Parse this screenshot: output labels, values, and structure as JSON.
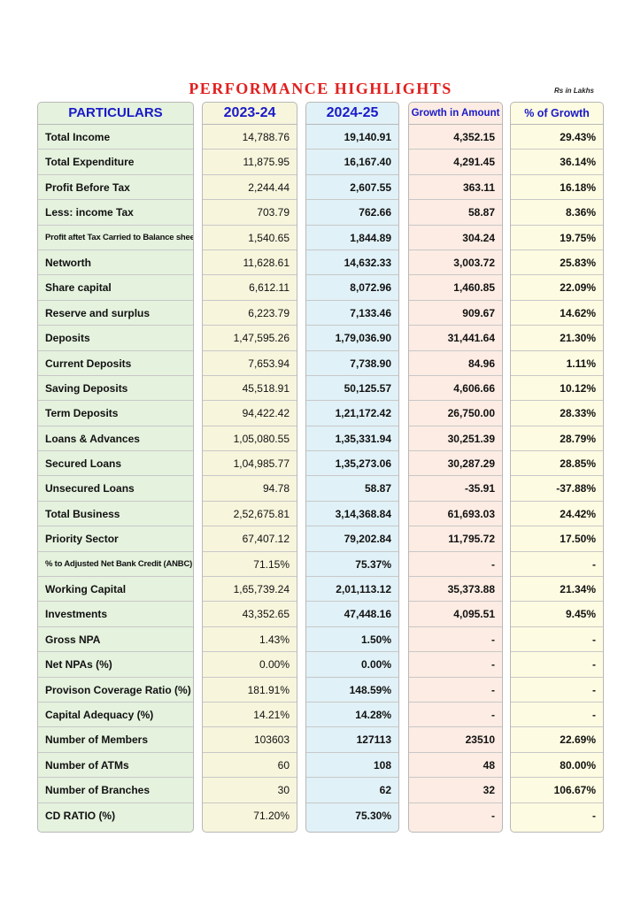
{
  "title": "PERFORMANCE  HIGHLIGHTS",
  "unit": "Rs in Lakhs",
  "headers": [
    "PARTICULARS",
    "2023-24",
    "2024-25",
    "Growth in Amount",
    "% of  Growth"
  ],
  "rows": [
    [
      "Total Income",
      "14,788.76",
      "19,140.91",
      "4,352.15",
      "29.43%"
    ],
    [
      "Total Expenditure",
      "11,875.95",
      "16,167.40",
      "4,291.45",
      "36.14%"
    ],
    [
      "Profit Before Tax",
      "2,244.44",
      "2,607.55",
      "363.11",
      "16.18%"
    ],
    [
      "Less: income Tax",
      "703.79",
      "762.66",
      "58.87",
      "8.36%"
    ],
    [
      "Profit aftet Tax Carried to Balance sheet",
      "1,540.65",
      "1,844.89",
      "304.24",
      "19.75%"
    ],
    [
      "Networth",
      "11,628.61",
      "14,632.33",
      "3,003.72",
      "25.83%"
    ],
    [
      "Share capital",
      "6,612.11",
      "8,072.96",
      "1,460.85",
      "22.09%"
    ],
    [
      "Reserve and surplus",
      "6,223.79",
      "7,133.46",
      "909.67",
      "14.62%"
    ],
    [
      "Deposits",
      "1,47,595.26",
      "1,79,036.90",
      "31,441.64",
      "21.30%"
    ],
    [
      "Current Deposits",
      "7,653.94",
      "7,738.90",
      "84.96",
      "1.11%"
    ],
    [
      "Saving Deposits",
      "45,518.91",
      "50,125.57",
      "4,606.66",
      "10.12%"
    ],
    [
      "Term Deposits",
      "94,422.42",
      "1,21,172.42",
      "26,750.00",
      "28.33%"
    ],
    [
      "Loans & Advances",
      "1,05,080.55",
      "1,35,331.94",
      "30,251.39",
      "28.79%"
    ],
    [
      "Secured Loans",
      "1,04,985.77",
      "1,35,273.06",
      "30,287.29",
      "28.85%"
    ],
    [
      "Unsecured Loans",
      "94.78",
      "58.87",
      "-35.91",
      "-37.88%"
    ],
    [
      "Total Business",
      "2,52,675.81",
      "3,14,368.84",
      "61,693.03",
      "24.42%"
    ],
    [
      "Priority Sector",
      "67,407.12",
      "79,202.84",
      "11,795.72",
      "17.50%"
    ],
    [
      "% to Adjusted Net Bank Credit (ANBC)",
      "71.15%",
      "75.37%",
      "-",
      "-"
    ],
    [
      "Working Capital",
      "1,65,739.24",
      "2,01,113.12",
      "35,373.88",
      "21.34%"
    ],
    [
      "Investments",
      "43,352.65",
      "47,448.16",
      "4,095.51",
      "9.45%"
    ],
    [
      "Gross NPA",
      "1.43%",
      "1.50%",
      "-",
      "-"
    ],
    [
      "Net NPAs (%)",
      "0.00%",
      "0.00%",
      "-",
      "-"
    ],
    [
      "Provison Coverage Ratio (%)",
      "181.91%",
      "148.59%",
      "-",
      "-"
    ],
    [
      "Capital Adequacy (%)",
      "14.21%",
      "14.28%",
      "-",
      "-"
    ],
    [
      "Number of Members",
      "103603",
      "127113",
      "23510",
      "22.69%"
    ],
    [
      "Number of ATMs",
      "60",
      "108",
      "48",
      "80.00%"
    ],
    [
      "Number of Branches",
      "30",
      "62",
      "32",
      "106.67%"
    ],
    [
      "CD RATIO (%)",
      "71.20%",
      "75.30%",
      "-",
      "-"
    ]
  ]
}
